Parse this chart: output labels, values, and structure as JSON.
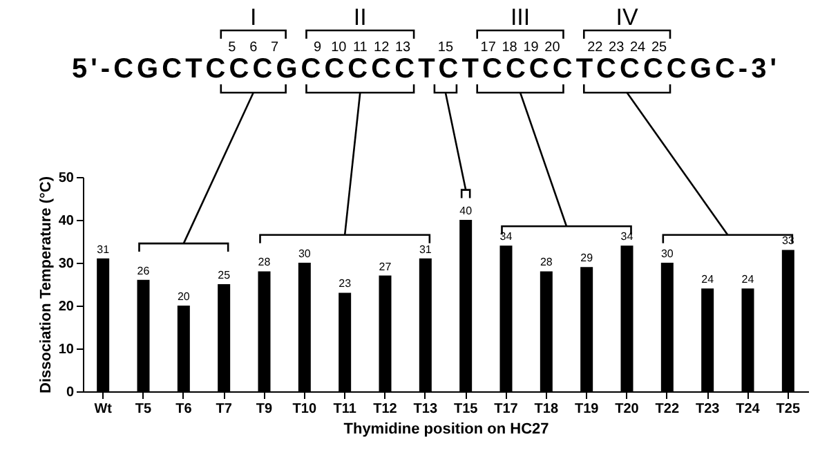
{
  "chart_data": {
    "type": "bar",
    "categories": [
      "Wt",
      "T5",
      "T6",
      "T7",
      "T9",
      "T10",
      "T11",
      "T12",
      "T13",
      "T15",
      "T17",
      "T18",
      "T19",
      "T20",
      "T22",
      "T23",
      "T24",
      "T25"
    ],
    "values": [
      31,
      26,
      20,
      25,
      28,
      30,
      23,
      27,
      31,
      40,
      34,
      28,
      29,
      34,
      30,
      24,
      24,
      33
    ],
    "color": "#000000",
    "ylim": [
      0,
      50
    ],
    "yticks": [
      0,
      10,
      20,
      30,
      40,
      50
    ],
    "xlabel": "Thymidine position on HC27",
    "ylabel": "Dissociation Temperature (°C)",
    "data_labels": true,
    "annotations": [
      "I",
      "II",
      "III",
      "IV",
      "5",
      "6",
      "7",
      "9",
      "10",
      "11",
      "12",
      "13",
      "15",
      "17",
      "18",
      "19",
      "20",
      "22",
      "23",
      "24",
      "25",
      "5'-CGCTCCCGCCCCCTCTCCCCTCCCCGC-3'"
    ]
  }
}
